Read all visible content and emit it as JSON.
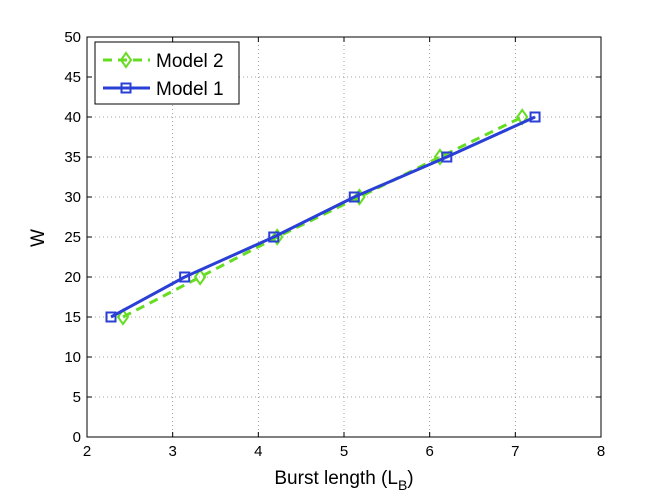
{
  "chart_data": {
    "type": "line",
    "xlabel": "Burst length (L",
    "xlabel_subscript": "B",
    "xlabel_suffix": ")",
    "ylabel": "W",
    "xlim": [
      2,
      8
    ],
    "ylim": [
      0,
      50
    ],
    "xticks": [
      2,
      3,
      4,
      5,
      6,
      7,
      8
    ],
    "yticks": [
      0,
      5,
      10,
      15,
      20,
      25,
      30,
      35,
      40,
      45,
      50
    ],
    "grid": true,
    "legend_position": "top-left",
    "series": [
      {
        "name": "Model 2",
        "color": "#66dd22",
        "line_style": "dashed",
        "marker": "diamond",
        "x": [
          2.42,
          3.32,
          4.22,
          5.18,
          6.12,
          7.08
        ],
        "y": [
          15,
          20,
          25,
          30,
          35,
          40
        ]
      },
      {
        "name": "Model 1",
        "color": "#2a3fd6",
        "line_style": "solid",
        "marker": "square",
        "x": [
          2.28,
          3.14,
          4.18,
          5.12,
          6.2,
          7.23
        ],
        "y": [
          15,
          20,
          25,
          30,
          35,
          40
        ]
      }
    ]
  }
}
